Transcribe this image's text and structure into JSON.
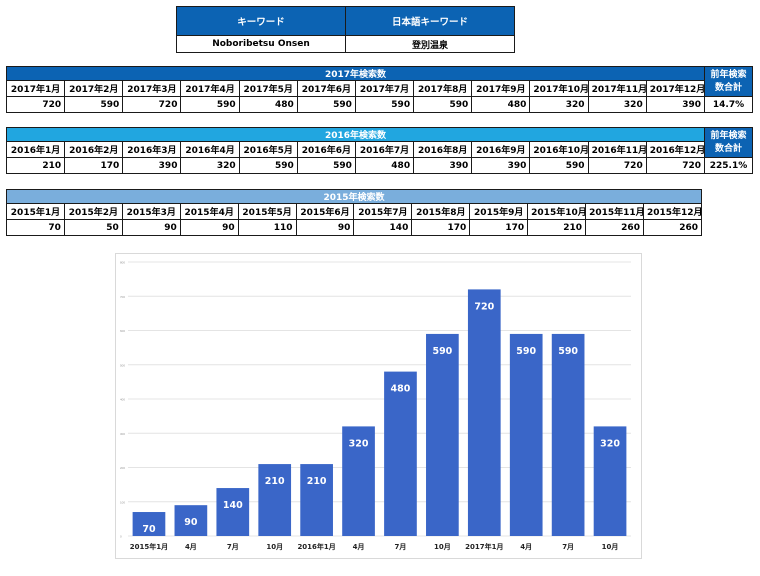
{
  "keyword_table": {
    "headers": [
      "キーワード",
      "日本語キーワード"
    ],
    "values": [
      "Noboribetsu Onsen",
      "登別温泉"
    ]
  },
  "years": [
    {
      "title": "2017年検索数",
      "months": [
        "2017年1月",
        "2017年2月",
        "2017年3月",
        "2017年4月",
        "2017年5月",
        "2017年6月",
        "2017年7月",
        "2017年8月",
        "2017年9月",
        "2017年10月",
        "2017年11月",
        "2017年12月"
      ],
      "values": [
        "720",
        "590",
        "720",
        "590",
        "480",
        "590",
        "590",
        "590",
        "480",
        "320",
        "320",
        "390"
      ],
      "side_label": "前年検索数合計",
      "side_value": "14.7%"
    },
    {
      "title": "2016年検索数",
      "months": [
        "2016年1月",
        "2016年2月",
        "2016年3月",
        "2016年4月",
        "2016年5月",
        "2016年6月",
        "2016年7月",
        "2016年8月",
        "2016年9月",
        "2016年10月",
        "2016年11月",
        "2016年12月"
      ],
      "values": [
        "210",
        "170",
        "390",
        "320",
        "590",
        "590",
        "480",
        "390",
        "390",
        "590",
        "720",
        "720"
      ],
      "side_label": "前年検索数合計",
      "side_value": "225.1%"
    },
    {
      "title": "2015年検索数",
      "months": [
        "2015年1月",
        "2015年2月",
        "2015年3月",
        "2015年4月",
        "2015年5月",
        "2015年6月",
        "2015年7月",
        "2015年8月",
        "2015年9月",
        "2015年10月",
        "2015年11月",
        "2015年12月"
      ],
      "values": [
        "70",
        "50",
        "90",
        "90",
        "110",
        "90",
        "140",
        "170",
        "170",
        "210",
        "260",
        "260"
      ]
    }
  ],
  "chart_data": {
    "type": "bar",
    "categories": [
      "2015年1月",
      "4月",
      "7月",
      "10月",
      "2016年1月",
      "4月",
      "7月",
      "10月",
      "2017年1月",
      "4月",
      "7月",
      "10月"
    ],
    "values": [
      70,
      90,
      140,
      210,
      210,
      320,
      480,
      590,
      720,
      590,
      590,
      320
    ],
    "ylim": [
      0,
      800
    ],
    "yticks": [
      0,
      100,
      200,
      300,
      400,
      500,
      600,
      700,
      800
    ],
    "grid": true,
    "bar_color": "#3a66c8",
    "data_labels": true,
    "legend": "none"
  }
}
